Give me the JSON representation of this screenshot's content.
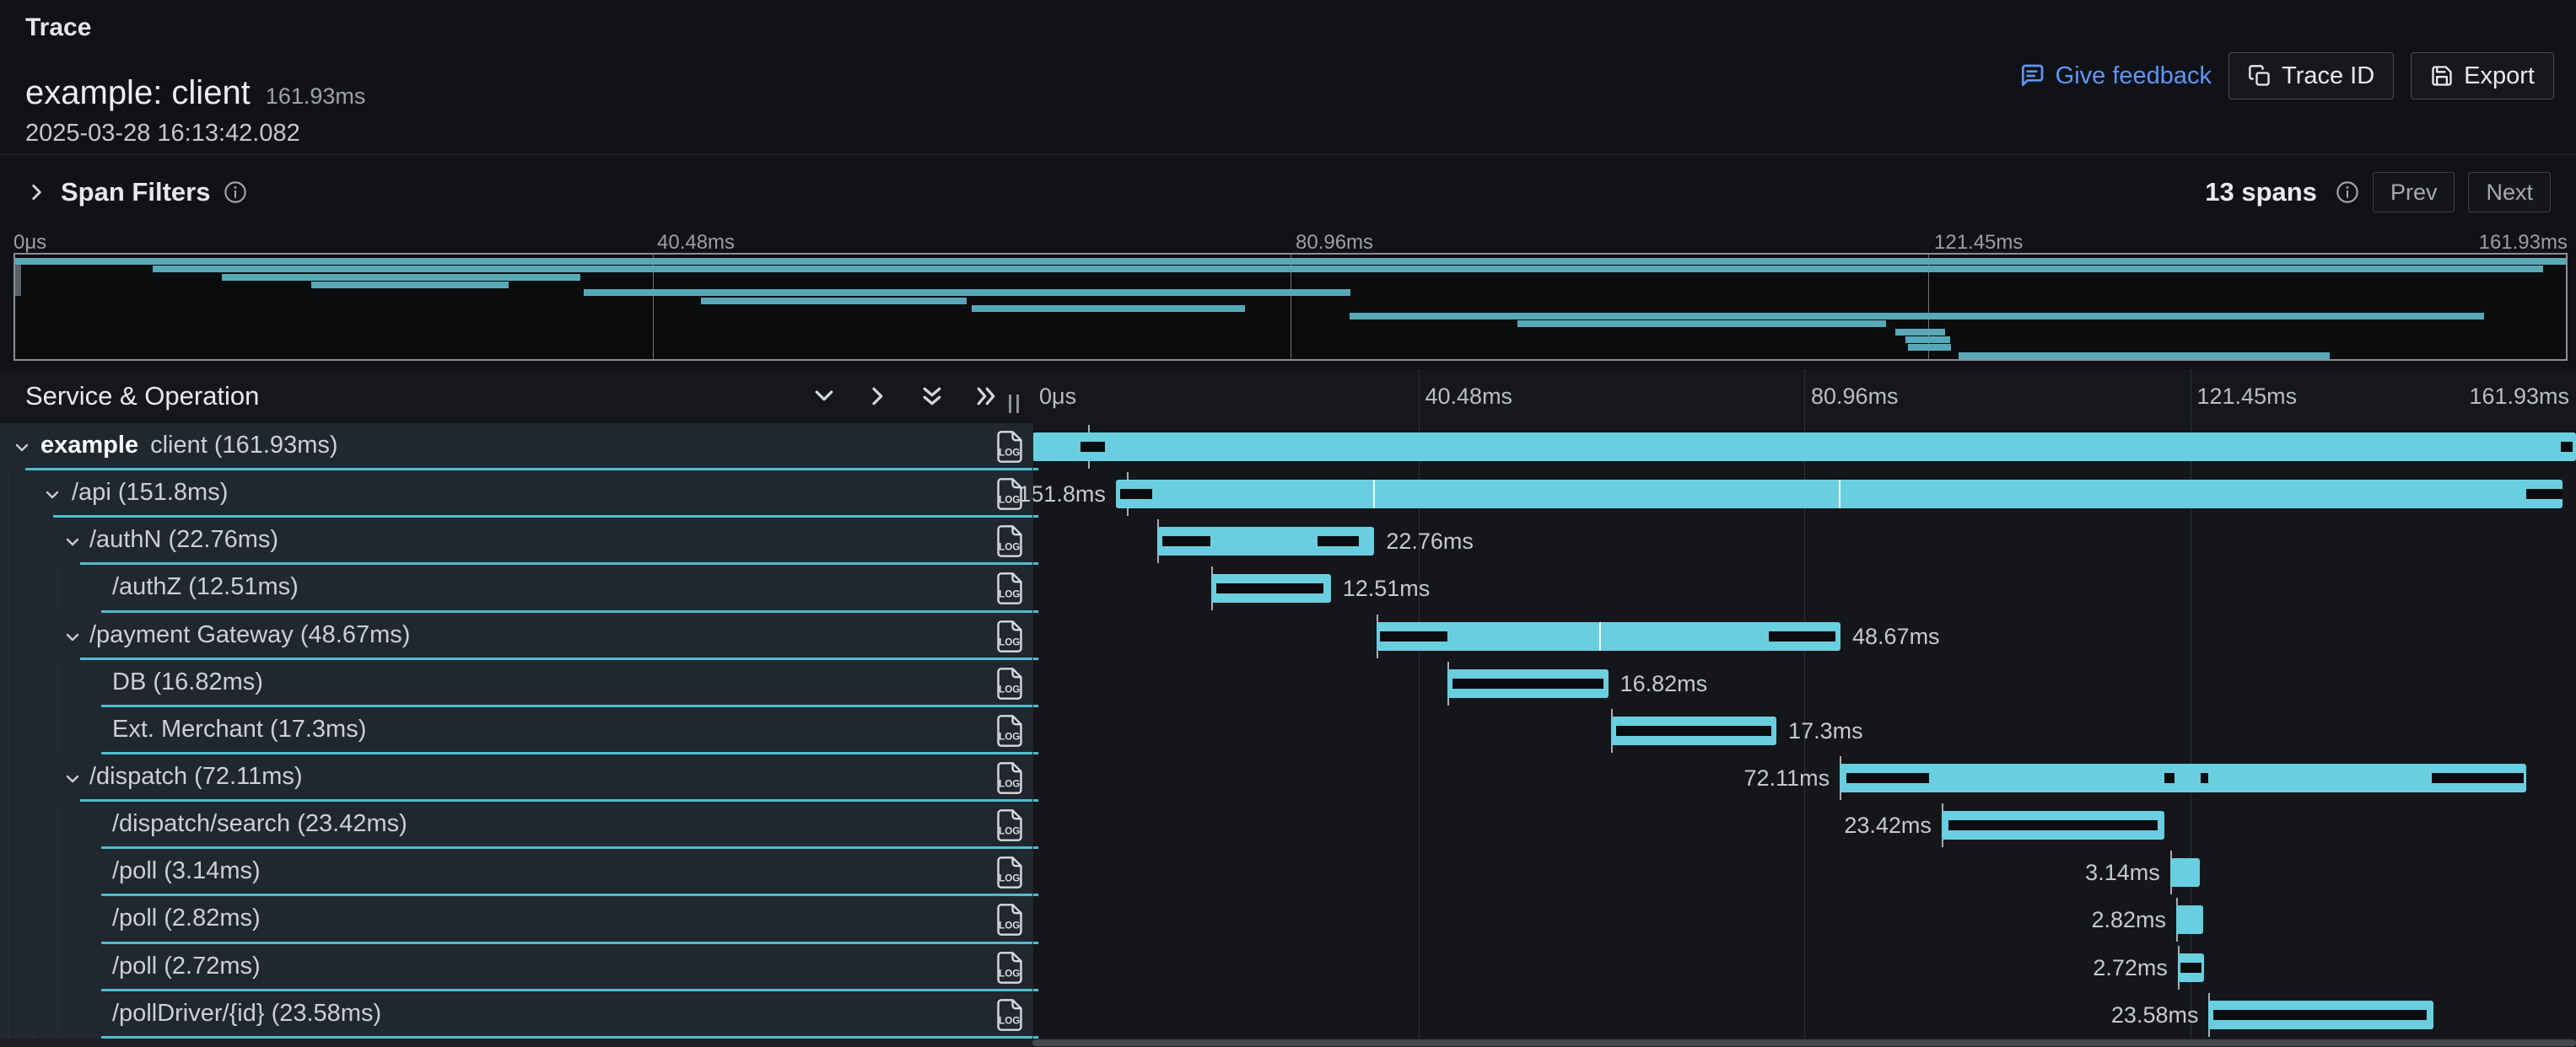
{
  "header": {
    "page_title": "Trace",
    "trace_title": "example: client",
    "duration_badge": "161.93ms",
    "timestamp": "2025-03-28 16:13:42.082",
    "feedback_label": "Give feedback",
    "trace_id_label": "Trace ID",
    "export_label": "Export"
  },
  "span_filters": {
    "title": "Span Filters",
    "span_count": "13 spans",
    "prev_label": "Prev",
    "next_label": "Next"
  },
  "time_ticks": [
    "0μs",
    "40.48ms",
    "80.96ms",
    "121.45ms",
    "161.93ms"
  ],
  "table": {
    "header_title": "Service & Operation"
  },
  "colors": {
    "bar_teal": "#69cfe0",
    "minimap_teal": "#58a9b7",
    "row_border_teal": "#4fbccd",
    "link_blue": "#5f96f7"
  },
  "spans": [
    {
      "service": "example",
      "operation": "client (161.93ms)",
      "level": 0,
      "expandable": true,
      "start": 0,
      "width": 100,
      "label": "",
      "label_side": "none",
      "notches": [
        [
          3.1,
          1.6
        ],
        [
          99.0,
          0.8
        ]
      ],
      "bar_ticks": [],
      "cross_tick": 3.6
    },
    {
      "service": "",
      "operation": "/api (151.8ms)",
      "level": 1,
      "expandable": true,
      "start": 5.4,
      "width": 93.7,
      "label": "151.8ms",
      "label_side": "left",
      "notches": [
        [
          0.3,
          2.2
        ],
        [
          97.5,
          2.5
        ]
      ],
      "bar_ticks": [
        17.8,
        50
      ],
      "cross_tick": 6.1
    },
    {
      "service": "",
      "operation": "/authN (22.76ms)",
      "level": 2,
      "expandable": true,
      "start": 8.1,
      "width": 14.05,
      "label": "22.76ms",
      "label_side": "right",
      "notches": [
        [
          2.3,
          22
        ],
        [
          74,
          19
        ]
      ],
      "bar_ticks": [],
      "cross_tick": 8.1
    },
    {
      "service": "",
      "operation": "/authZ (12.51ms)",
      "level": 3,
      "expandable": false,
      "start": 11.6,
      "width": 7.73,
      "label": "12.51ms",
      "label_side": "right",
      "notches": [
        [
          4,
          90
        ]
      ],
      "bar_ticks": [],
      "cross_tick": 11.6
    },
    {
      "service": "",
      "operation": "/payment Gateway (48.67ms)",
      "level": 2,
      "expandable": true,
      "start": 22.3,
      "width": 30.05,
      "label": "48.67ms",
      "label_side": "right",
      "notches": [
        [
          0.8,
          14.5
        ],
        [
          84.5,
          14.5
        ]
      ],
      "bar_ticks": [
        48
      ],
      "cross_tick": 22.3
    },
    {
      "service": "",
      "operation": "DB (16.82ms)",
      "level": 3,
      "expandable": false,
      "start": 26.9,
      "width": 10.4,
      "label": "16.82ms",
      "label_side": "right",
      "notches": [
        [
          3,
          94
        ]
      ],
      "bar_ticks": [],
      "cross_tick": 26.9
    },
    {
      "service": "",
      "operation": "Ext. Merchant (17.3ms)",
      "level": 3,
      "expandable": false,
      "start": 37.5,
      "width": 10.7,
      "label": "17.3ms",
      "label_side": "right",
      "notches": [
        [
          3,
          94
        ]
      ],
      "bar_ticks": [],
      "cross_tick": 37.5
    },
    {
      "service": "",
      "operation": "/dispatch (72.11ms)",
      "level": 2,
      "expandable": true,
      "start": 52.3,
      "width": 44.5,
      "label": "72.11ms",
      "label_side": "left",
      "notches": [
        [
          1,
          12
        ],
        [
          47.3,
          1.5
        ],
        [
          52.6,
          1.0
        ],
        [
          86.2,
          13.4
        ]
      ],
      "bar_ticks": [],
      "cross_tick": 52.3
    },
    {
      "service": "",
      "operation": "/dispatch/search (23.42ms)",
      "level": 3,
      "expandable": false,
      "start": 58.9,
      "width": 14.45,
      "label": "23.42ms",
      "label_side": "left",
      "notches": [
        [
          3,
          94
        ]
      ],
      "bar_ticks": [],
      "cross_tick": 58.9
    },
    {
      "service": "",
      "operation": "/poll (3.14ms)",
      "level": 3,
      "expandable": false,
      "start": 73.7,
      "width": 1.95,
      "label": "3.14ms",
      "label_side": "left",
      "notches": [],
      "bar_ticks": [],
      "cross_tick": 73.7
    },
    {
      "service": "",
      "operation": "/poll (2.82ms)",
      "level": 3,
      "expandable": false,
      "start": 74.1,
      "width": 1.75,
      "label": "2.82ms",
      "label_side": "left",
      "notches": [],
      "bar_ticks": [],
      "cross_tick": 74.1
    },
    {
      "service": "",
      "operation": "/poll (2.72ms)",
      "level": 3,
      "expandable": false,
      "start": 74.2,
      "width": 1.7,
      "label": "2.72ms",
      "label_side": "left",
      "notches": [
        [
          10,
          80
        ]
      ],
      "bar_ticks": [],
      "cross_tick": 74.2
    },
    {
      "service": "",
      "operation": "/pollDriver/{id} (23.58ms)",
      "level": 3,
      "expandable": false,
      "start": 76.2,
      "width": 14.55,
      "label": "23.58ms",
      "label_side": "left",
      "notches": [
        [
          2,
          95
        ]
      ],
      "bar_ticks": [],
      "cross_tick": 76.2
    }
  ]
}
